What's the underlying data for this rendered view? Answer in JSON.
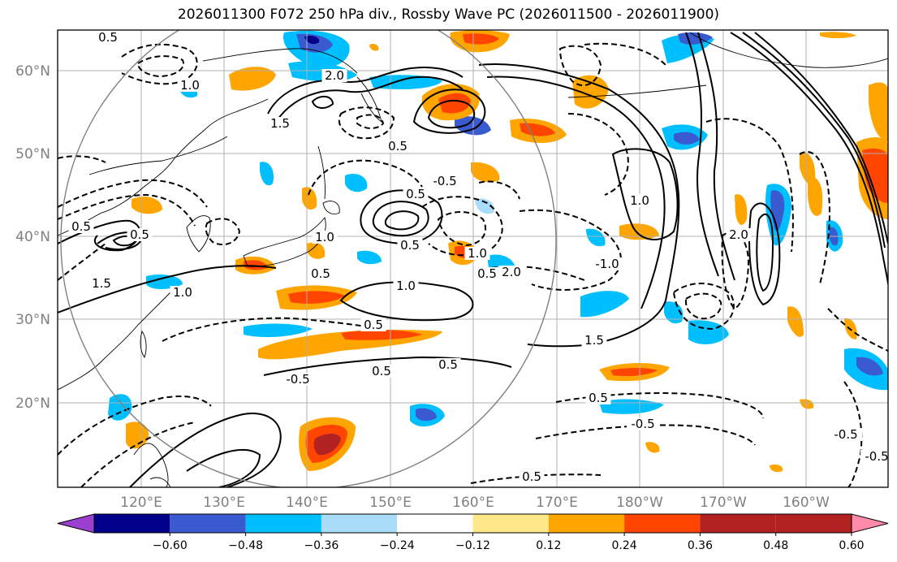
{
  "title": "2026011300 F072 250 hPa div., Rossby Wave PC (2026011500 - 2026011900)",
  "axes": {
    "lon_labels": [
      "120°E",
      "130°E",
      "140°E",
      "150°E",
      "160°E",
      "170°E",
      "180°W",
      "170°W",
      "160°W"
    ],
    "lat_labels": [
      "60°N",
      "50°N",
      "40°N",
      "30°N",
      "20°N"
    ]
  },
  "colorbar": {
    "ticks": [
      "−0.60",
      "−0.48",
      "−0.36",
      "−0.24",
      "−0.12",
      "0.12",
      "0.24",
      "0.36",
      "0.48",
      "0.60"
    ],
    "colors": [
      "#9b3fd0",
      "#00008b",
      "#3a5bd0",
      "#00bfff",
      "#a8dcf8",
      "#ffffff",
      "#ffe88a",
      "#ffa500",
      "#ff4500",
      "#b22222",
      "#ff8aaa"
    ]
  },
  "contour_labels": [
    "0.5",
    "1.0",
    "1.5",
    "2.0",
    "0.5",
    "1.0",
    "1.5",
    "0.5",
    "0.5",
    "-0.5",
    "0.5",
    "1.0",
    "0.5",
    "0.5",
    "0.5",
    "0.5",
    "1.0",
    "1.5",
    "0.5",
    "-0.5",
    "-0.5",
    "0.5",
    "1.0",
    "2.0",
    "2.0",
    "-0.5",
    "0.5",
    "-1.0",
    "1.0",
    "-0.5",
    "0.5"
  ],
  "fields": {
    "colors": {
      "neg_light": "#a8dcf8",
      "neg_mid": "#00bfff",
      "neg_strong": "#3a5bd0",
      "neg_max": "#00008b",
      "pos_light": "#ffe88a",
      "pos_mid": "#ffa500",
      "pos_strong": "#ff4500",
      "pos_max": "#b22222"
    }
  }
}
